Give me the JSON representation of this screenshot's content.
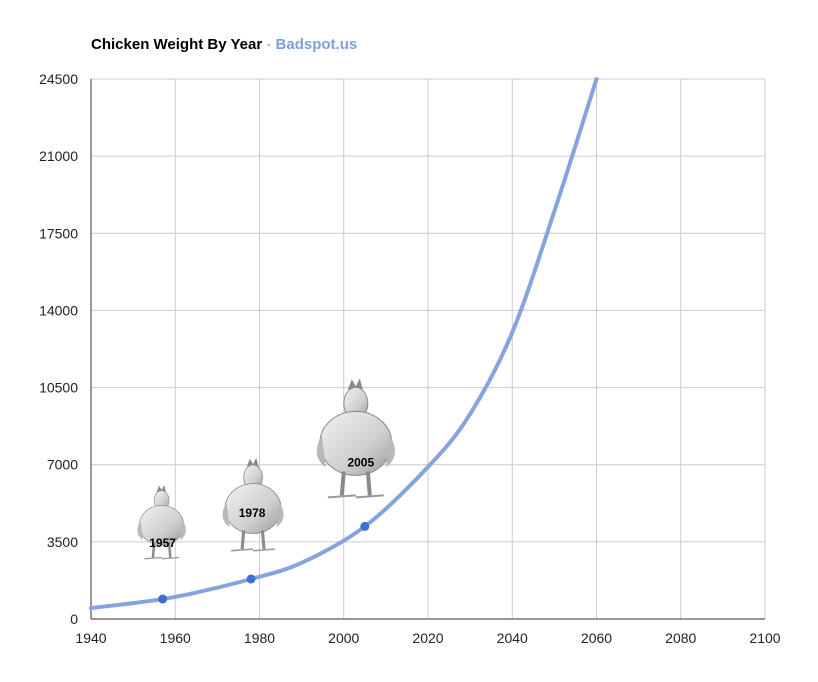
{
  "chart_data": {
    "type": "line",
    "title": "Chicken Weight By Year",
    "subtitle_separator": "-",
    "subtitle": "Badspot.us",
    "xlim": [
      1940,
      2100
    ],
    "ylim": [
      0,
      24500
    ],
    "x_ticks": [
      1940,
      1960,
      1980,
      2000,
      2020,
      2040,
      2060,
      2080,
      2100
    ],
    "y_ticks": [
      0,
      3500,
      7000,
      10500,
      14000,
      17500,
      21000,
      24500
    ],
    "grid": true,
    "series": [
      {
        "color": "#86a3e0",
        "curve": [
          {
            "x": 1940,
            "y": 500
          },
          {
            "x": 1950,
            "y": 720
          },
          {
            "x": 1957,
            "y": 905
          },
          {
            "x": 1965,
            "y": 1200
          },
          {
            "x": 1978,
            "y": 1815
          },
          {
            "x": 1990,
            "y": 2550
          },
          {
            "x": 2005,
            "y": 4200
          },
          {
            "x": 2020,
            "y": 6900
          },
          {
            "x": 2030,
            "y": 9300
          },
          {
            "x": 2040,
            "y": 13000
          },
          {
            "x": 2050,
            "y": 18500
          },
          {
            "x": 2060,
            "y": 24500
          }
        ]
      }
    ],
    "points": [
      {
        "x": 1957,
        "y": 905,
        "label": "1957"
      },
      {
        "x": 1978,
        "y": 1815,
        "label": "1978"
      },
      {
        "x": 2005,
        "y": 4200,
        "label": "2005"
      }
    ],
    "point_color": "#3d6fd1"
  }
}
